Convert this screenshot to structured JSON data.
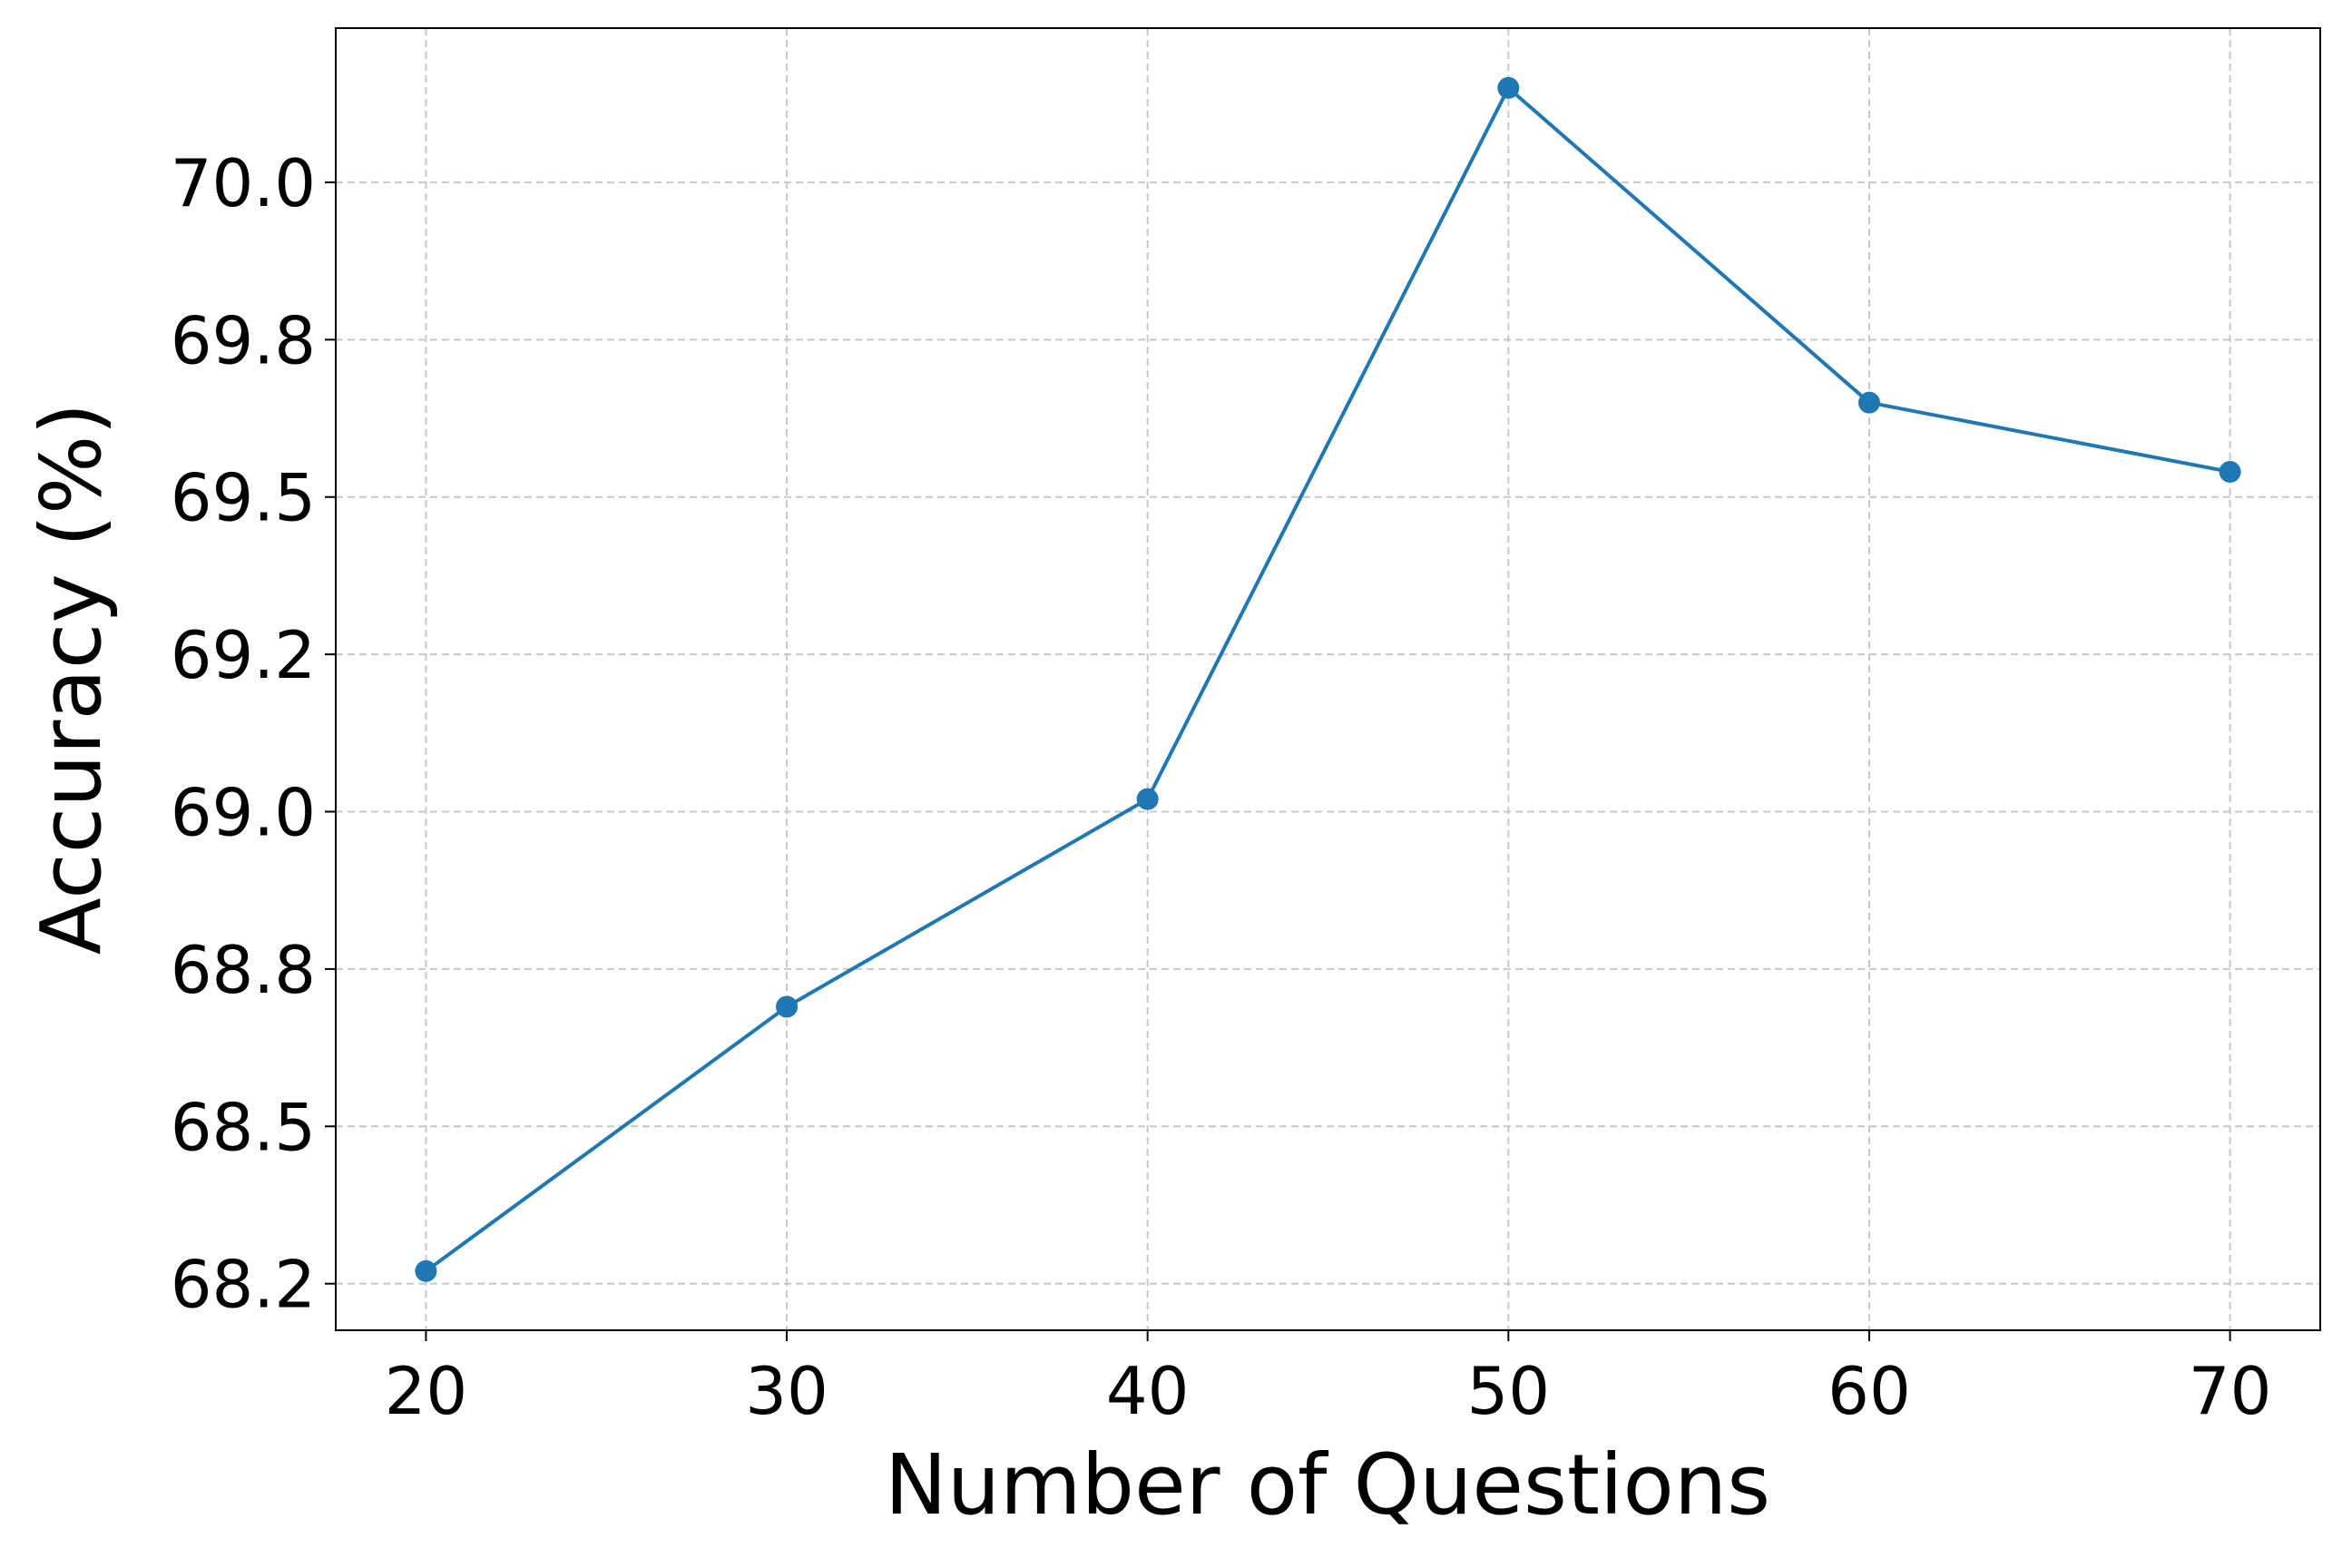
{
  "chart_data": {
    "type": "line",
    "x_label": "Number of Questions",
    "y_label": "Accuracy (%)",
    "x": [
      20,
      30,
      40,
      50,
      60,
      70
    ],
    "series": [
      {
        "color": "#1f77b4",
        "values": [
          68.27,
          68.69,
          69.02,
          70.15,
          69.65,
          69.54
        ]
      }
    ],
    "xlim": [
      17.5,
      72.5
    ],
    "xticks": [
      20,
      30,
      40,
      50,
      60,
      70
    ],
    "ylim": [
      68.176,
      70.245
    ],
    "yticks": [
      {
        "value": 68.25,
        "label": "68.2"
      },
      68.5,
      {
        "value": 68.75,
        "label": "68.8"
      },
      {
        "value": 69.0,
        "label": "69.0"
      },
      {
        "value": 69.25,
        "label": "69.2"
      },
      69.5,
      {
        "value": 69.75,
        "label": "69.8"
      },
      {
        "value": 70.0,
        "label": "70.0"
      }
    ],
    "grid": true
  }
}
